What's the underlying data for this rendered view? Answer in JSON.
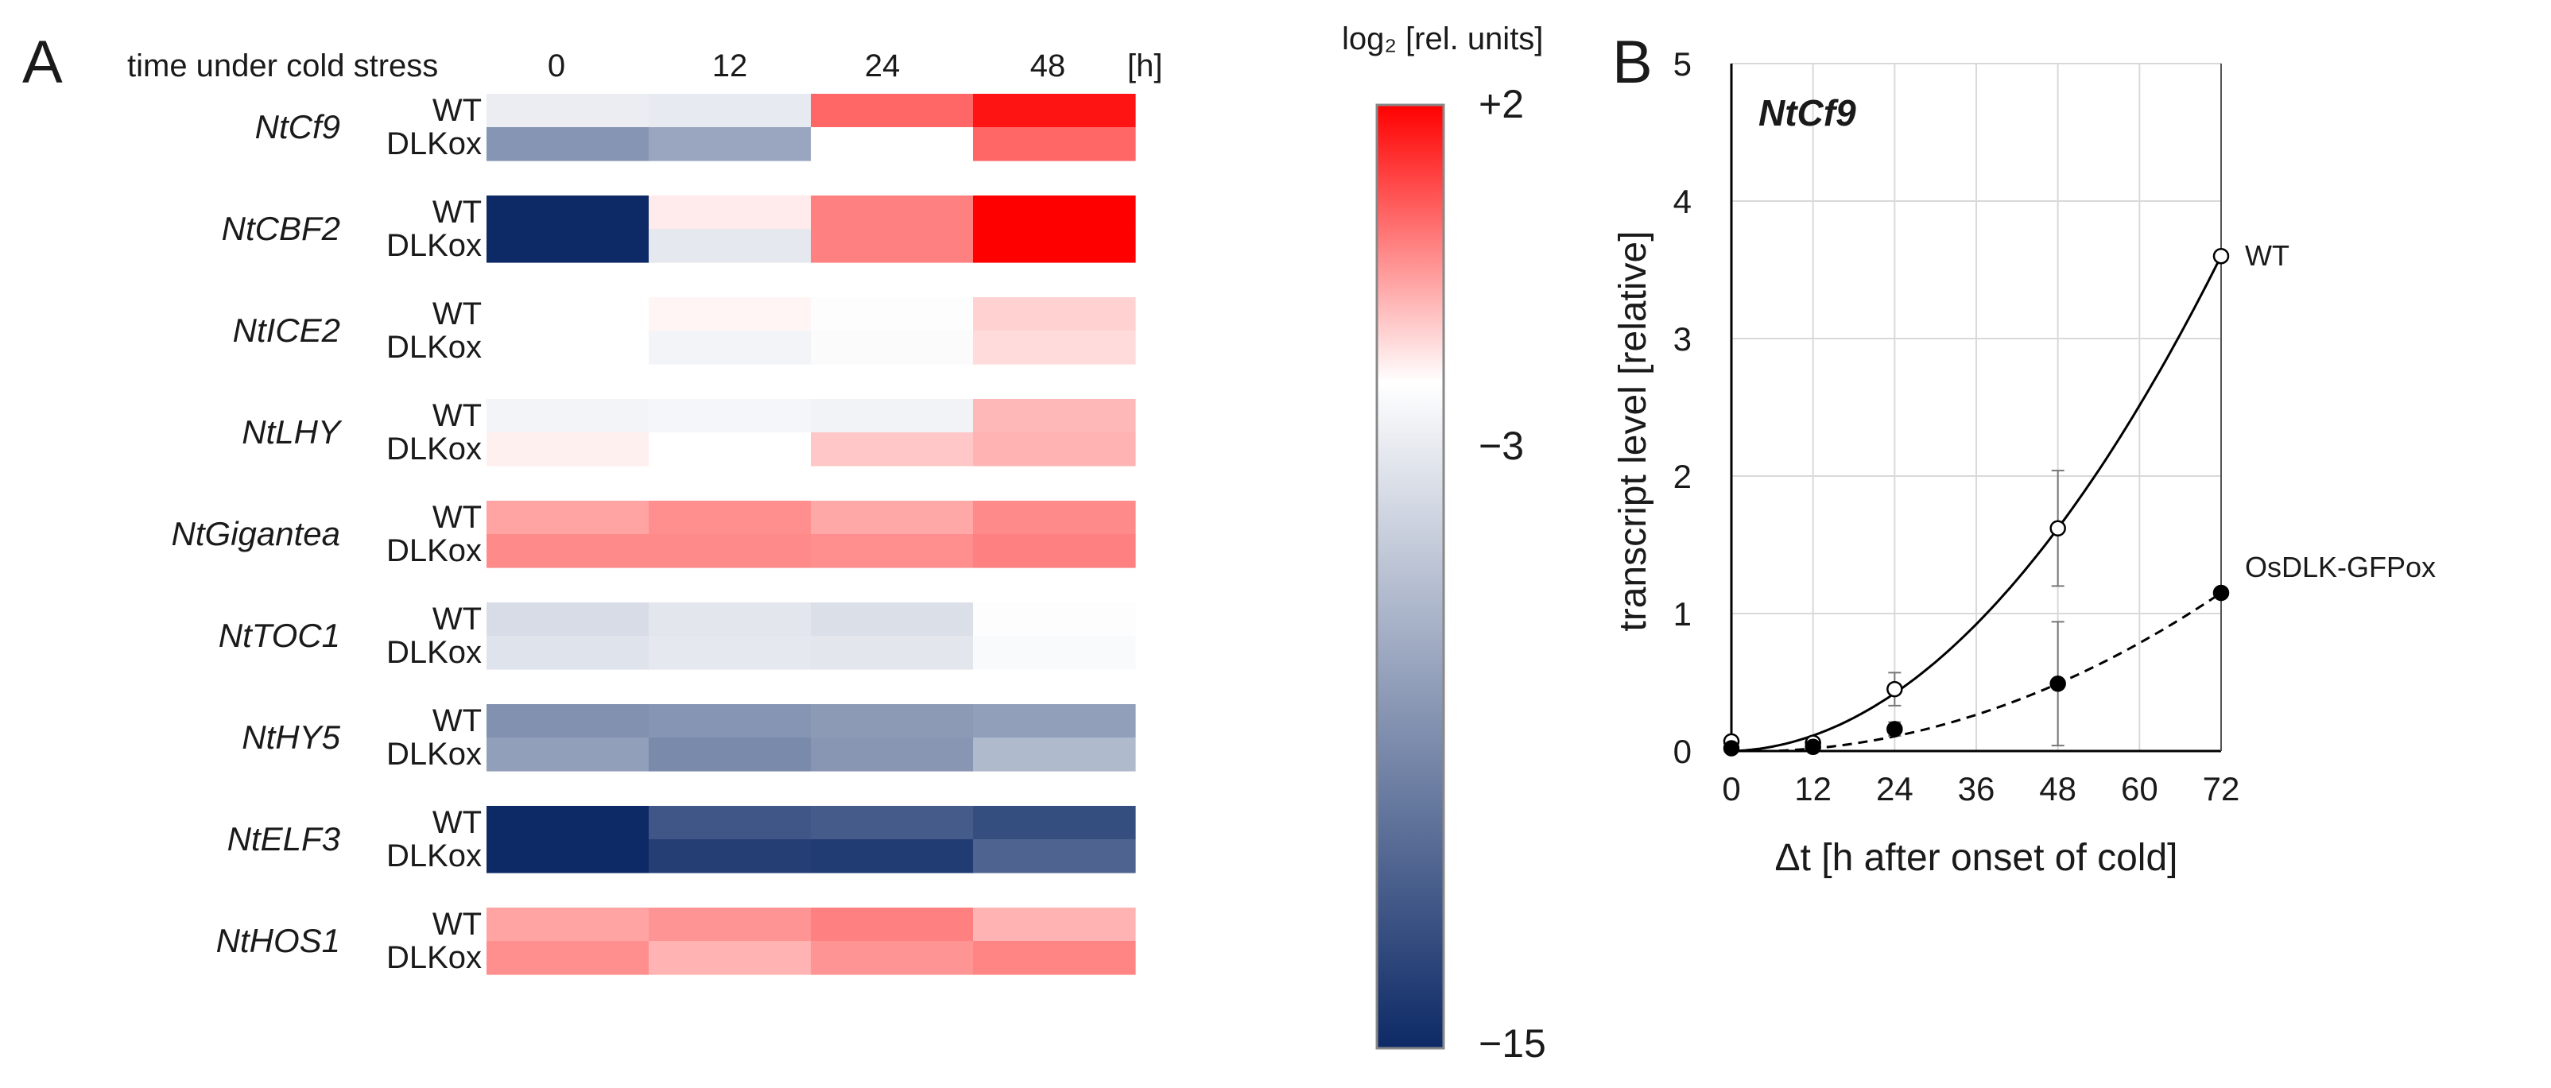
{
  "panel_a": {
    "label": "A",
    "header_label": "time under cold stress",
    "time_labels": [
      "0",
      "12",
      "24",
      "48"
    ],
    "unit_label": "[h]",
    "colorbar": {
      "title": "log₂ [rel. units]",
      "ticks": [
        "+2",
        "−3",
        "−15"
      ],
      "colors": {
        "high": "#ff0000",
        "mid": "#ffffff",
        "low": "#0d2a66"
      }
    }
  },
  "panel_b": {
    "label": "B",
    "inset_title": "NtCf9"
  },
  "chart_data": [
    {
      "type": "heatmap",
      "title": "time under cold stress",
      "columns": [
        "0",
        "12",
        "24",
        "48"
      ],
      "column_unit": "[h]",
      "value_unit": "log2 [rel. units]",
      "vmin": -15,
      "vcenter": -3,
      "vmax": 2,
      "genes": [
        {
          "name": "NtCf9",
          "rows": [
            {
              "genotype": "WT",
              "values": [
                -4.0,
                -4.2,
                0.0,
                1.6
              ]
            },
            {
              "genotype": "DLKox",
              "values": [
                -9.0,
                -8.0,
                -3.0,
                0.0
              ]
            }
          ]
        },
        {
          "name": "NtCBF2",
          "rows": [
            {
              "genotype": "WT",
              "values": [
                -15.0,
                -2.6,
                -0.5,
                2.0
              ]
            },
            {
              "genotype": "DLKox",
              "values": [
                -15.0,
                -4.3,
                -0.5,
                2.0
              ]
            }
          ]
        },
        {
          "name": "NtICE2",
          "rows": [
            {
              "genotype": "WT",
              "values": [
                -3.0,
                -2.8,
                -3.1,
                -2.1
              ]
            },
            {
              "genotype": "DLKox",
              "values": [
                -3.0,
                -3.6,
                -3.2,
                -2.3
              ]
            }
          ]
        },
        {
          "name": "NtLHY",
          "rows": [
            {
              "genotype": "WT",
              "values": [
                -3.6,
                -3.5,
                -3.7,
                -1.6
              ]
            },
            {
              "genotype": "DLKox",
              "values": [
                -2.7,
                -3.0,
                -1.9,
                -1.5
              ]
            }
          ]
        },
        {
          "name": "NtGigantea",
          "rows": [
            {
              "genotype": "WT",
              "values": [
                -1.2,
                -0.8,
                -1.3,
                -0.7
              ]
            },
            {
              "genotype": "DLKox",
              "values": [
                -0.7,
                -0.7,
                -0.8,
                -0.5
              ]
            }
          ]
        },
        {
          "name": "NtTOC1",
          "rows": [
            {
              "genotype": "WT",
              "values": [
                -5.0,
                -4.4,
                -4.8,
                -3.1
              ]
            },
            {
              "genotype": "DLKox",
              "values": [
                -4.6,
                -4.3,
                -4.4,
                -3.3
              ]
            }
          ]
        },
        {
          "name": "NtHY5",
          "rows": [
            {
              "genotype": "WT",
              "values": [
                -9.2,
                -9.0,
                -8.7,
                -8.4
              ]
            },
            {
              "genotype": "DLKox",
              "values": [
                -8.4,
                -9.6,
                -8.9,
                -6.9
              ]
            }
          ]
        },
        {
          "name": "NtELF3",
          "rows": [
            {
              "genotype": "WT",
              "values": [
                -15.0,
                -12.5,
                -12.2,
                -13.0
              ]
            },
            {
              "genotype": "DLKox",
              "values": [
                -15.0,
                -13.8,
                -14.0,
                -11.8
              ]
            }
          ]
        },
        {
          "name": "NtHOS1",
          "rows": [
            {
              "genotype": "WT",
              "values": [
                -1.2,
                -0.9,
                -0.5,
                -1.5
              ]
            },
            {
              "genotype": "DLKox",
              "values": [
                -0.8,
                -1.5,
                -0.9,
                -0.6
              ]
            }
          ]
        }
      ]
    },
    {
      "type": "line",
      "title": "NtCf9",
      "xlabel": "Δt [h after onset of cold]",
      "ylabel": "transcript level [relative]",
      "xlim": [
        0,
        72
      ],
      "ylim": [
        0,
        5
      ],
      "xticks": [
        0,
        12,
        24,
        36,
        48,
        60,
        72
      ],
      "yticks": [
        0,
        1,
        2,
        3,
        4,
        5
      ],
      "grid": true,
      "series": [
        {
          "name": "WT",
          "marker": "open-circle",
          "line": "solid",
          "x": [
            0,
            12,
            24,
            48,
            72
          ],
          "y": [
            0.07,
            0.06,
            0.45,
            1.62,
            3.6
          ],
          "error": [
            0.03,
            0.03,
            0.12,
            0.42,
            0.0
          ]
        },
        {
          "name": "OsDLK-GFPox",
          "marker": "filled-circle",
          "line": "dashed",
          "x": [
            0,
            12,
            24,
            48,
            72
          ],
          "y": [
            0.02,
            0.03,
            0.16,
            0.49,
            1.15
          ],
          "error": [
            0.02,
            0.02,
            0.05,
            0.45,
            0.0
          ]
        }
      ]
    }
  ]
}
